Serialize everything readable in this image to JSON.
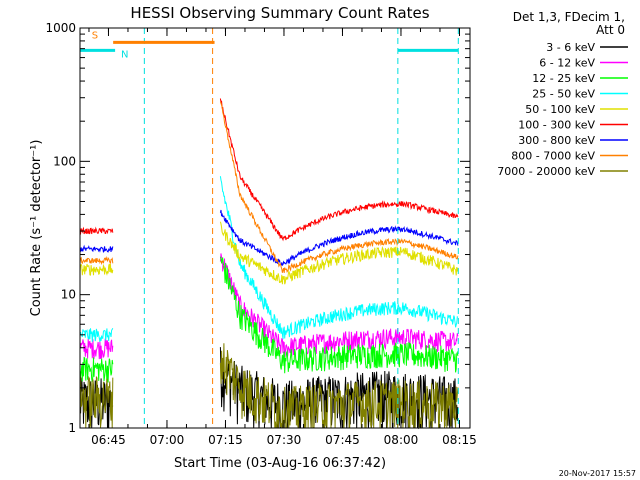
{
  "chart_data": {
    "type": "line",
    "title": "HESSI Observing Summary Count Rates",
    "xlabel": "Start Time (03-Aug-16 06:37:42)",
    "ylabel": "Count Rate (s⁻¹ detector⁻¹)",
    "yscale": "log",
    "ylim": [
      1,
      1000
    ],
    "xlim_minutes": [
      0,
      100
    ],
    "x_ticks": [
      {
        "minute": 7.3,
        "label": "06:45"
      },
      {
        "minute": 22.3,
        "label": "07:00"
      },
      {
        "minute": 37.3,
        "label": "07:15"
      },
      {
        "minute": 52.3,
        "label": "07:30"
      },
      {
        "minute": 67.3,
        "label": "07:45"
      },
      {
        "minute": 82.3,
        "label": "08:00"
      },
      {
        "minute": 97.3,
        "label": "08:15"
      }
    ],
    "y_ticks": [
      {
        "value": 1,
        "label": "1"
      },
      {
        "value": 10,
        "label": "10"
      },
      {
        "value": 100,
        "label": "100"
      },
      {
        "value": 1000,
        "label": "1000"
      }
    ],
    "legend": {
      "header": [
        "Det 1,3, FDecim 1,",
        "Att 0"
      ],
      "placement": "right"
    },
    "footer_date": "20-Nov-2017 15:57",
    "flags": [
      {
        "label": "S",
        "color": "#ff8000",
        "start": 8.5,
        "end": 34.5,
        "value": 780
      },
      {
        "label": "N",
        "color": "#00e0e0",
        "start": 0,
        "end": 9,
        "value": 680
      },
      {
        "label": "",
        "color": "#00e0e0",
        "start": 81.5,
        "end": 97,
        "value": 680
      }
    ],
    "dashed_lines": [
      {
        "minute": 16.5,
        "color": "#00e0e0"
      },
      {
        "minute": 34,
        "color": "#ff8000"
      },
      {
        "minute": 81.5,
        "color": "#00e0e0"
      },
      {
        "minute": 97,
        "color": "#00e0e0"
      }
    ],
    "segments": [
      [
        0,
        8.5
      ],
      [
        36,
        97
      ]
    ],
    "series": [
      {
        "name": "3 - 6 keV",
        "color": "#000000",
        "seg1": 1.6,
        "peak": 2.8,
        "min": 1.5,
        "hump": 1.8,
        "end": 1.6,
        "noise": 0.5
      },
      {
        "name": "6 - 12 keV",
        "color": "#ff00ff",
        "seg1": 4.0,
        "peak": 20,
        "min": 4.0,
        "hump": 4.8,
        "end": 4.4,
        "noise": 0.18
      },
      {
        "name": "12 - 25 keV",
        "color": "#00ff00",
        "seg1": 2.8,
        "peak": 19,
        "min": 3.2,
        "hump": 3.6,
        "end": 3.3,
        "noise": 0.22
      },
      {
        "name": "25 - 50 keV",
        "color": "#00ffff",
        "seg1": 5.0,
        "peak": 72,
        "min": 5.2,
        "hump": 8.0,
        "end": 6.2,
        "noise": 0.12
      },
      {
        "name": "50 - 100 keV",
        "color": "#e0e000",
        "seg1": 15.5,
        "peak": 32,
        "min": 13,
        "hump": 21,
        "end": 15,
        "noise": 0.1
      },
      {
        "name": "100 - 300 keV",
        "color": "#ff0000",
        "seg1": 30,
        "peak": 290,
        "min": 26,
        "hump": 48,
        "end": 38,
        "noise": 0.05
      },
      {
        "name": "300 - 800 keV",
        "color": "#0000ff",
        "seg1": 22,
        "peak": 42,
        "min": 17,
        "hump": 31,
        "end": 24,
        "noise": 0.05
      },
      {
        "name": "800 - 7000 keV",
        "color": "#ff8000",
        "seg1": 18,
        "peak": 285,
        "min": 15,
        "hump": 25,
        "end": 19,
        "noise": 0.05
      },
      {
        "name": "7000 - 20000 keV",
        "color": "#808000",
        "seg1": 1.7,
        "peak": 3.5,
        "min": 1.4,
        "hump": 1.6,
        "end": 1.5,
        "noise": 0.45
      }
    ]
  }
}
